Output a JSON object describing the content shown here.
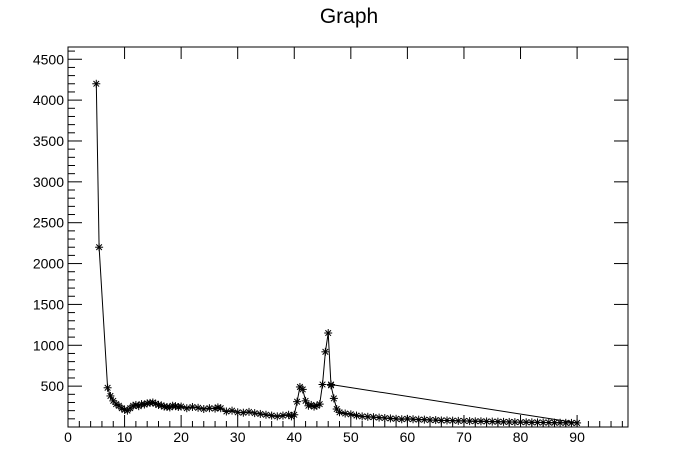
{
  "chart_data": {
    "type": "line",
    "title": "Graph",
    "xlabel": "",
    "ylabel": "",
    "xlim": [
      0,
      99
    ],
    "ylim": [
      0,
      4650
    ],
    "grid": false,
    "marker": "asterisk",
    "x_ticks": [
      0,
      10,
      20,
      30,
      40,
      50,
      60,
      70,
      80,
      90
    ],
    "y_ticks": [
      500,
      1000,
      1500,
      2000,
      2500,
      3000,
      3500,
      4000,
      4500
    ],
    "series": [
      {
        "x": [
          5,
          5.5,
          7,
          7.5,
          8,
          8.5,
          9,
          9.5,
          10,
          10.5,
          11,
          11.5,
          12,
          12.5,
          13,
          13.5,
          14,
          14.5,
          15,
          15.5,
          16,
          16.5,
          17,
          17.5,
          18,
          18.5,
          19,
          19.5,
          20,
          21,
          22,
          23,
          24,
          25,
          26,
          26.5,
          27,
          28,
          29,
          30,
          31,
          32,
          33,
          34,
          35,
          36,
          37,
          38,
          39,
          39.5,
          40,
          40.5,
          41,
          41.5,
          42,
          42.5,
          43,
          43.5,
          44,
          44.5,
          45,
          45.5,
          46,
          46.5,
          47,
          47.5,
          48,
          49,
          50,
          51,
          52,
          53,
          54,
          55,
          56,
          57,
          58,
          59,
          60,
          61,
          62,
          63,
          64,
          65,
          66,
          67,
          68,
          69,
          70,
          71,
          72,
          73,
          74,
          75,
          76,
          77,
          78,
          79,
          80,
          81,
          82,
          83,
          84,
          85,
          86,
          87,
          88,
          89,
          90,
          46.5
        ],
        "y": [
          4200,
          2200,
          480,
          380,
          320,
          280,
          260,
          230,
          210,
          200,
          230,
          260,
          270,
          255,
          280,
          275,
          290,
          295,
          300,
          285,
          270,
          265,
          250,
          245,
          240,
          260,
          255,
          245,
          250,
          230,
          245,
          235,
          220,
          230,
          225,
          240,
          230,
          190,
          200,
          180,
          175,
          185,
          170,
          160,
          150,
          140,
          130,
          140,
          150,
          130,
          150,
          310,
          490,
          460,
          320,
          260,
          270,
          250,
          260,
          280,
          520,
          920,
          1150,
          510,
          350,
          220,
          180,
          165,
          155,
          140,
          130,
          125,
          120,
          115,
          110,
          105,
          100,
          95,
          100,
          95,
          90,
          90,
          85,
          85,
          80,
          80,
          78,
          75,
          75,
          72,
          70,
          70,
          68,
          66,
          65,
          63,
          62,
          60,
          60,
          58,
          57,
          56,
          55,
          54,
          53,
          52,
          51,
          50,
          50,
          520
        ]
      }
    ]
  }
}
